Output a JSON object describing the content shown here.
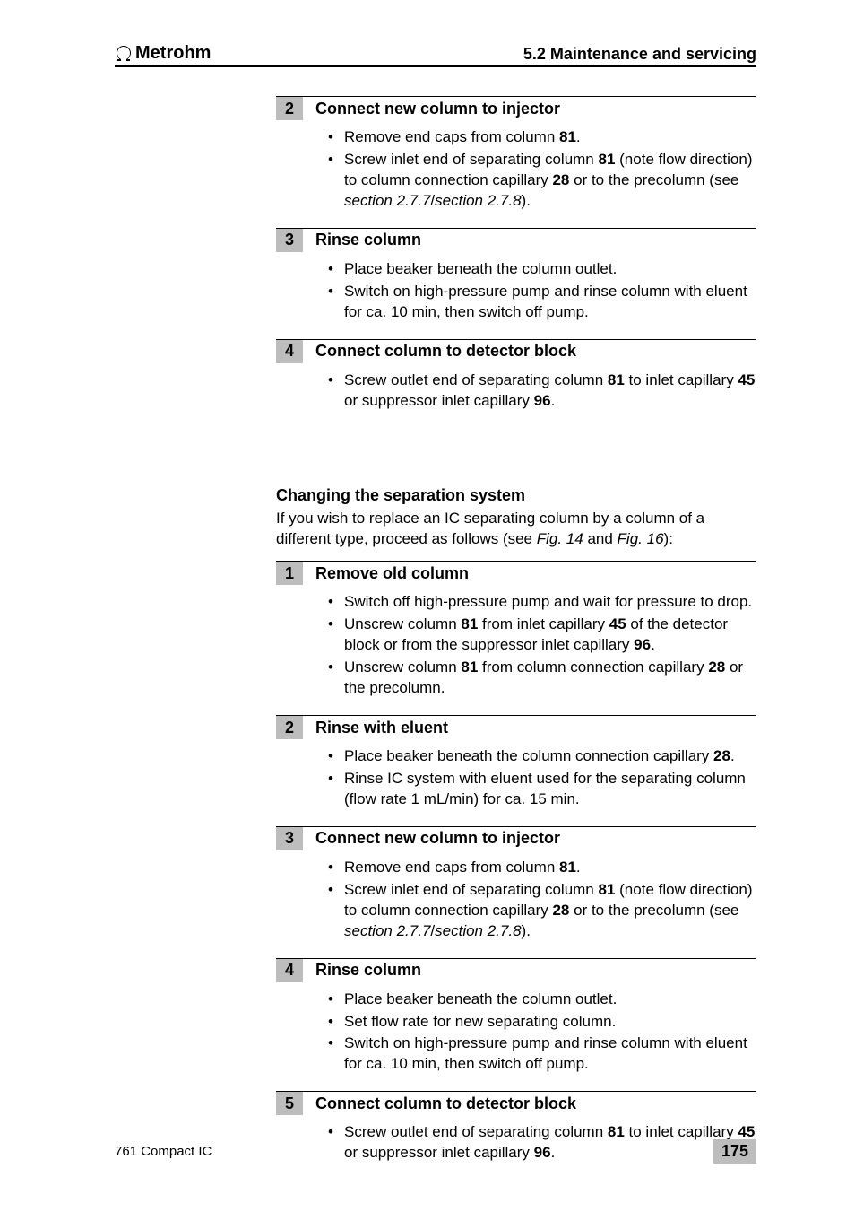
{
  "header": {
    "brand": "Metrohm",
    "section": "5.2  Maintenance and servicing"
  },
  "groupA": {
    "steps": [
      {
        "num": "2",
        "title": "Connect new column to injector",
        "items": [
          [
            {
              "t": "Remove end caps from column "
            },
            {
              "t": "81",
              "b": true
            },
            {
              "t": "."
            }
          ],
          [
            {
              "t": "Screw inlet end of separating column "
            },
            {
              "t": "81",
              "b": true
            },
            {
              "t": " (note flow direction) to column connection capillary "
            },
            {
              "t": "28",
              "b": true
            },
            {
              "t": " or to the precolumn (see "
            },
            {
              "t": "section 2.7.7",
              "i": true
            },
            {
              "t": "/"
            },
            {
              "t": "section 2.7.8",
              "i": true
            },
            {
              "t": ")."
            }
          ]
        ]
      },
      {
        "num": "3",
        "title": "Rinse column",
        "items": [
          [
            {
              "t": "Place beaker beneath the column outlet."
            }
          ],
          [
            {
              "t": "Switch on high-pressure pump and rinse column with eluent for ca. 10 min, then switch off pump."
            }
          ]
        ]
      },
      {
        "num": "4",
        "title": "Connect column to detector block",
        "items": [
          [
            {
              "t": "Screw outlet end of separating column "
            },
            {
              "t": "81",
              "b": true
            },
            {
              "t": " to inlet capillary "
            },
            {
              "t": "45",
              "b": true
            },
            {
              "t": " or suppressor inlet capillary "
            },
            {
              "t": "96",
              "b": true
            },
            {
              "t": "."
            }
          ]
        ]
      }
    ]
  },
  "changing": {
    "heading": "Changing the separation system",
    "intro_segments": [
      {
        "t": "If you wish to replace an IC separating column by a column of a different type, proceed as follows (see "
      },
      {
        "t": "Fig. 14",
        "i": true
      },
      {
        "t": " and "
      },
      {
        "t": "Fig. 16",
        "i": true
      },
      {
        "t": "):"
      }
    ],
    "steps": [
      {
        "num": "1",
        "title": "Remove old column",
        "items": [
          [
            {
              "t": "Switch off high-pressure pump and wait for pressure to drop."
            }
          ],
          [
            {
              "t": "Unscrew column "
            },
            {
              "t": "81",
              "b": true
            },
            {
              "t": " from inlet capillary "
            },
            {
              "t": "45",
              "b": true
            },
            {
              "t": " of the detector block or from the suppressor inlet capillary "
            },
            {
              "t": "96",
              "b": true
            },
            {
              "t": "."
            }
          ],
          [
            {
              "t": "Unscrew column "
            },
            {
              "t": "81",
              "b": true
            },
            {
              "t": " from column connection capillary "
            },
            {
              "t": "28",
              "b": true
            },
            {
              "t": " or the precolumn."
            }
          ]
        ]
      },
      {
        "num": "2",
        "title": "Rinse with eluent",
        "items": [
          [
            {
              "t": "Place beaker beneath the column connection capillary "
            },
            {
              "t": "28",
              "b": true
            },
            {
              "t": "."
            }
          ],
          [
            {
              "t": "Rinse IC system with eluent used for the separating column (flow rate 1 mL/min) for ca. 15 min."
            }
          ]
        ]
      },
      {
        "num": "3",
        "title": "Connect new column to injector",
        "items": [
          [
            {
              "t": "Remove end caps from column "
            },
            {
              "t": "81",
              "b": true
            },
            {
              "t": "."
            }
          ],
          [
            {
              "t": "Screw inlet end of separating column "
            },
            {
              "t": "81",
              "b": true
            },
            {
              "t": " (note flow direction) to column connection capillary "
            },
            {
              "t": "28",
              "b": true
            },
            {
              "t": " or to the precolumn (see "
            },
            {
              "t": "section 2.7.7",
              "i": true
            },
            {
              "t": "/"
            },
            {
              "t": "section 2.7.8",
              "i": true
            },
            {
              "t": ")."
            }
          ]
        ]
      },
      {
        "num": "4",
        "title": "Rinse column",
        "items": [
          [
            {
              "t": "Place beaker beneath the column outlet."
            }
          ],
          [
            {
              "t": "Set flow rate for new separating column."
            }
          ],
          [
            {
              "t": "Switch on high-pressure pump and rinse column with eluent for ca. 10 min, then switch off pump."
            }
          ]
        ]
      },
      {
        "num": "5",
        "title": "Connect column to detector block",
        "items": [
          [
            {
              "t": "Screw outlet end of separating column "
            },
            {
              "t": "81",
              "b": true
            },
            {
              "t": " to inlet capillary "
            },
            {
              "t": "45",
              "b": true
            },
            {
              "t": " or suppressor inlet capillary "
            },
            {
              "t": "96",
              "b": true
            },
            {
              "t": "."
            }
          ]
        ]
      }
    ]
  },
  "footer": {
    "doc": "761 Compact IC",
    "page": "175"
  }
}
